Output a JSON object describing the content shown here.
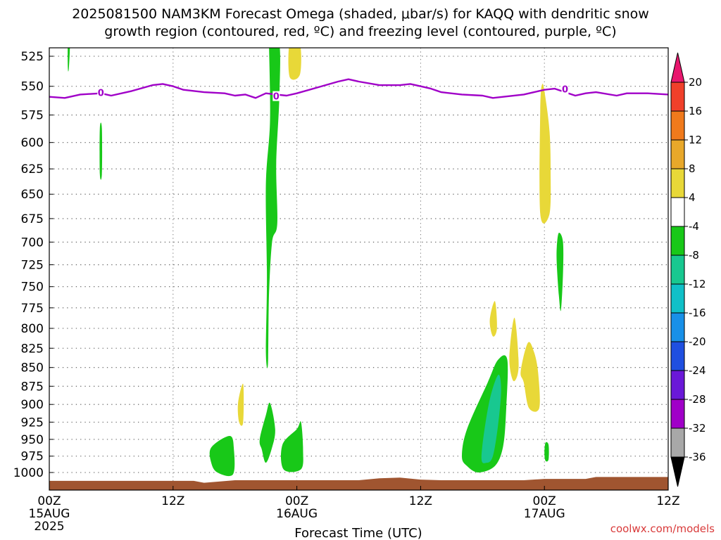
{
  "title": {
    "line1": "2025081500 NAM3KM Forecast Omega (shaded, μbar/s) for KAQQ with dendritic snow",
    "line2": "growth region (contoured, red, ºC) and freezing level (contoured, purple, ºC)"
  },
  "credit": "coolwx.com/models",
  "chart_data": {
    "type": "heatmap",
    "title": "2025081500 NAM3KM Forecast Omega (shaded, μbar/s) for KAQQ with dendritic snow growth region (contoured, red, ºC) and freezing level (contoured, purple, ºC)",
    "xlabel": "Forecast Time (UTC)",
    "ylabel": "",
    "x_range_hours": [
      0,
      60
    ],
    "y_range_mb": [
      1000,
      515
    ],
    "y_scale": "log-pressure",
    "grid": true,
    "x_ticks": [
      {
        "hour": 0,
        "label": "00Z",
        "sub": "15AUG",
        "sub2": "2025"
      },
      {
        "hour": 12,
        "label": "12Z",
        "sub": "",
        "sub2": ""
      },
      {
        "hour": 24,
        "label": "00Z",
        "sub": "16AUG",
        "sub2": ""
      },
      {
        "hour": 36,
        "label": "12Z",
        "sub": "",
        "sub2": ""
      },
      {
        "hour": 48,
        "label": "00Z",
        "sub": "17AUG",
        "sub2": ""
      },
      {
        "hour": 60,
        "label": "12Z",
        "sub": "",
        "sub2": ""
      }
    ],
    "y_ticks": [
      525,
      550,
      575,
      600,
      625,
      650,
      675,
      700,
      725,
      750,
      775,
      800,
      825,
      850,
      875,
      900,
      925,
      950,
      975,
      1000
    ],
    "colorbar": {
      "labels": [
        "20",
        "16",
        "12",
        "8",
        "4",
        "-4",
        "-8",
        "-12",
        "-16",
        "-20",
        "-24",
        "-28",
        "-32",
        "-36"
      ],
      "colors": [
        "#e8176e",
        "#f0402a",
        "#f07a1c",
        "#e8a82a",
        "#e8d838",
        "#ffffff",
        "#18c818",
        "#18c890",
        "#10c0c8",
        "#1890e8",
        "#1f4fe0",
        "#6a18d8",
        "#a000c8",
        "#a8a8a8"
      ]
    },
    "freezing_level": {
      "label": "0",
      "color": "#a000c8",
      "points": [
        [
          0,
          559
        ],
        [
          1.5,
          560
        ],
        [
          3,
          557
        ],
        [
          5,
          556
        ],
        [
          6,
          558
        ],
        [
          8,
          554
        ],
        [
          10,
          549
        ],
        [
          11,
          548
        ],
        [
          12,
          550
        ],
        [
          13,
          553
        ],
        [
          15,
          555
        ],
        [
          17,
          556
        ],
        [
          18,
          558
        ],
        [
          19,
          557
        ],
        [
          20,
          560
        ],
        [
          21,
          556
        ],
        [
          22,
          557
        ],
        [
          23,
          558
        ],
        [
          24,
          556
        ],
        [
          26,
          551
        ],
        [
          28,
          546
        ],
        [
          29,
          544
        ],
        [
          30,
          546
        ],
        [
          32,
          549
        ],
        [
          34,
          549
        ],
        [
          35,
          548
        ],
        [
          36,
          550
        ],
        [
          37,
          552
        ],
        [
          38,
          555
        ],
        [
          40,
          557
        ],
        [
          42,
          558
        ],
        [
          43,
          560
        ],
        [
          44,
          559
        ],
        [
          46,
          557
        ],
        [
          47,
          555
        ],
        [
          48,
          553
        ],
        [
          49,
          552
        ],
        [
          50,
          555
        ],
        [
          51,
          558
        ],
        [
          52,
          556
        ],
        [
          53,
          555
        ],
        [
          55,
          558
        ],
        [
          56,
          556
        ],
        [
          58,
          556
        ],
        [
          60,
          557
        ]
      ],
      "labels_at": [
        [
          5,
          556
        ],
        [
          22,
          559
        ],
        [
          50,
          553
        ]
      ]
    },
    "shaded_regions": [
      {
        "value_range": [
          -8,
          -4
        ],
        "color": "#18c818",
        "points": [
          [
            1.8,
            515
          ],
          [
            2.0,
            515
          ],
          [
            1.9,
            535
          ],
          [
            1.8,
            535
          ]
        ]
      },
      {
        "value_range": [
          -8,
          -4
        ],
        "color": "#18c818",
        "points": [
          [
            4.9,
            587
          ],
          [
            5.1,
            587
          ],
          [
            5.1,
            630
          ],
          [
            4.9,
            630
          ]
        ]
      },
      {
        "value_range": [
          -8,
          -4
        ],
        "color": "#18c818",
        "points": [
          [
            21.3,
            515
          ],
          [
            22.3,
            515
          ],
          [
            22.3,
            560
          ],
          [
            22.0,
            620
          ],
          [
            22.1,
            680
          ],
          [
            21.6,
            700
          ],
          [
            21.3,
            760
          ],
          [
            21.2,
            845
          ],
          [
            21.0,
            830
          ],
          [
            21.1,
            740
          ],
          [
            21.0,
            640
          ],
          [
            21.4,
            580
          ],
          [
            21.3,
            515
          ]
        ]
      },
      {
        "value_range": [
          4,
          8
        ],
        "color": "#e8d838",
        "points": [
          [
            23.3,
            515
          ],
          [
            24.3,
            515
          ],
          [
            24.3,
            540
          ],
          [
            23.3,
            542
          ]
        ]
      },
      {
        "value_range": [
          -8,
          -4
        ],
        "color": "#18c818",
        "points": [
          [
            15.7,
            962
          ],
          [
            17.5,
            945
          ],
          [
            17.9,
            965
          ],
          [
            17.8,
            1003
          ],
          [
            16.3,
            1000
          ],
          [
            15.7,
            985
          ]
        ]
      },
      {
        "value_range": [
          4,
          8
        ],
        "color": "#e8d838",
        "points": [
          [
            18.3,
            898
          ],
          [
            18.8,
            872
          ],
          [
            18.8,
            925
          ],
          [
            18.4,
            925
          ]
        ]
      },
      {
        "value_range": [
          -8,
          -4
        ],
        "color": "#18c818",
        "points": [
          [
            20.4,
            950
          ],
          [
            21.0,
            915
          ],
          [
            21.4,
            898
          ],
          [
            21.9,
            935
          ],
          [
            21.6,
            962
          ],
          [
            21.0,
            985
          ],
          [
            20.6,
            965
          ]
        ]
      },
      {
        "value_range": [
          -8,
          -4
        ],
        "color": "#18c818",
        "points": [
          [
            22.6,
            958
          ],
          [
            24.0,
            935
          ],
          [
            24.4,
            925
          ],
          [
            24.6,
            965
          ],
          [
            24.4,
            995
          ],
          [
            22.7,
            995
          ]
        ]
      },
      {
        "value_range": [
          -8,
          -4
        ],
        "color": "#18c818",
        "points": [
          [
            40.0,
            975
          ],
          [
            40.5,
            935
          ],
          [
            42.5,
            870
          ],
          [
            43.5,
            840
          ],
          [
            44.4,
            840
          ],
          [
            44.3,
            905
          ],
          [
            44.0,
            960
          ],
          [
            43.2,
            990
          ],
          [
            41.6,
            1000
          ],
          [
            40.5,
            990
          ]
        ]
      },
      {
        "value_range": [
          -12,
          -8
        ],
        "color": "#18c890",
        "points": [
          [
            41.9,
            975
          ],
          [
            42.6,
            900
          ],
          [
            43.5,
            860
          ],
          [
            43.8,
            880
          ],
          [
            43.5,
            930
          ],
          [
            43.0,
            975
          ],
          [
            42.4,
            985
          ]
        ]
      },
      {
        "value_range": [
          4,
          8
        ],
        "color": "#e8d838",
        "points": [
          [
            42.7,
            790
          ],
          [
            43.2,
            767
          ],
          [
            43.4,
            800
          ],
          [
            43.0,
            810
          ]
        ]
      },
      {
        "value_range": [
          4,
          8
        ],
        "color": "#e8d838",
        "points": [
          [
            44.6,
            838
          ],
          [
            45.1,
            787
          ],
          [
            45.5,
            848
          ],
          [
            45.0,
            868
          ]
        ]
      },
      {
        "value_range": [
          4,
          8
        ],
        "color": "#e8d838",
        "points": [
          [
            45.7,
            855
          ],
          [
            46.4,
            818
          ],
          [
            47.0,
            830
          ],
          [
            47.4,
            858
          ],
          [
            47.5,
            905
          ],
          [
            46.5,
            905
          ],
          [
            46.0,
            870
          ]
        ]
      },
      {
        "value_range": [
          4,
          8
        ],
        "color": "#e8d838",
        "points": [
          [
            47.6,
            570
          ],
          [
            47.8,
            548
          ],
          [
            48.1,
            560
          ],
          [
            48.5,
            590
          ],
          [
            48.6,
            625
          ],
          [
            48.5,
            670
          ],
          [
            47.6,
            670
          ]
        ]
      },
      {
        "value_range": [
          -8,
          -4
        ],
        "color": "#18c818",
        "points": [
          [
            49.2,
            705
          ],
          [
            49.4,
            690
          ],
          [
            49.8,
            700
          ],
          [
            49.8,
            735
          ],
          [
            49.6,
            778
          ],
          [
            49.4,
            760
          ],
          [
            49.2,
            725
          ]
        ]
      },
      {
        "value_range": [
          -8,
          -4
        ],
        "color": "#18c818",
        "points": [
          [
            48.0,
            970
          ],
          [
            48.1,
            955
          ],
          [
            48.4,
            958
          ],
          [
            48.4,
            980
          ],
          [
            48.1,
            982
          ]
        ]
      }
    ],
    "terrain": {
      "color": "#a05530",
      "points": [
        [
          0,
          1013
        ],
        [
          12,
          1013
        ],
        [
          14,
          1013
        ],
        [
          15,
          1016
        ],
        [
          18,
          1012
        ],
        [
          24,
          1012
        ],
        [
          30,
          1012
        ],
        [
          32,
          1009
        ],
        [
          34,
          1008
        ],
        [
          36,
          1011
        ],
        [
          38,
          1012
        ],
        [
          42,
          1012
        ],
        [
          46,
          1012
        ],
        [
          48,
          1010
        ],
        [
          50,
          1010
        ],
        [
          52,
          1010
        ],
        [
          53,
          1007
        ],
        [
          56,
          1007
        ],
        [
          60,
          1007
        ]
      ]
    }
  }
}
